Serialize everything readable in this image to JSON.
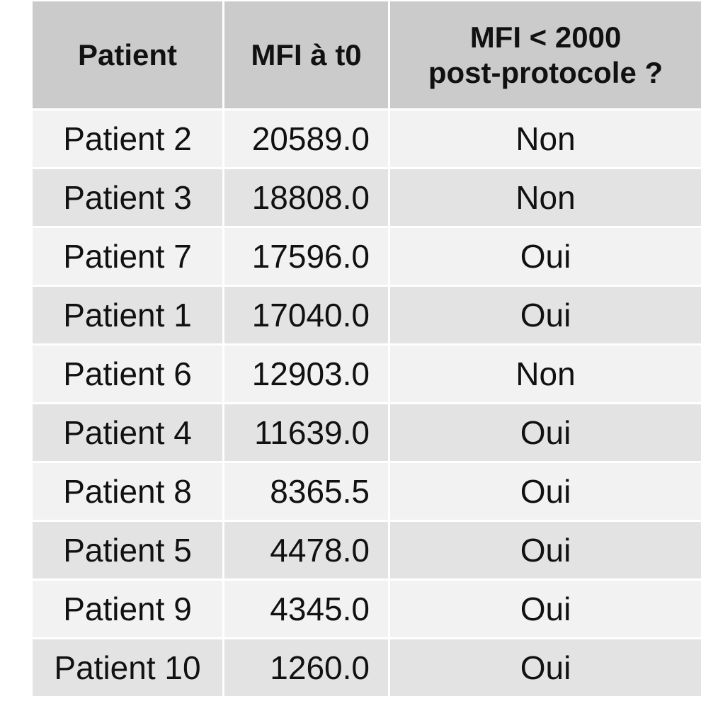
{
  "chart_data": {
    "type": "table",
    "columns": [
      "Patient",
      "MFI à t0",
      "MFI < 2000 post-protocole ?"
    ],
    "rows": [
      {
        "patient": "Patient 2",
        "mfi": "20589.0",
        "below": "Non"
      },
      {
        "patient": "Patient 3",
        "mfi": "18808.0",
        "below": "Non"
      },
      {
        "patient": "Patient 7",
        "mfi": "17596.0",
        "below": "Oui"
      },
      {
        "patient": "Patient 1",
        "mfi": "17040.0",
        "below": "Oui"
      },
      {
        "patient": "Patient 6",
        "mfi": "12903.0",
        "below": "Non"
      },
      {
        "patient": "Patient 4",
        "mfi": "11639.0",
        "below": "Oui"
      },
      {
        "patient": "Patient 8",
        "mfi": "8365.5",
        "below": "Oui"
      },
      {
        "patient": "Patient 5",
        "mfi": "4478.0",
        "below": "Oui"
      },
      {
        "patient": "Patient 9",
        "mfi": "4345.0",
        "below": "Oui"
      },
      {
        "patient": "Patient 10",
        "mfi": "1260.0",
        "below": "Oui"
      }
    ]
  },
  "header": {
    "col1": "Patient",
    "col2": "MFI à t0",
    "col3_line1": "MFI < 2000",
    "col3_line2": "post-protocole ?"
  },
  "colors": {
    "header_bg": "#cbcbcb",
    "row_light": "#f2f2f2",
    "row_dark": "#e3e3e3"
  }
}
